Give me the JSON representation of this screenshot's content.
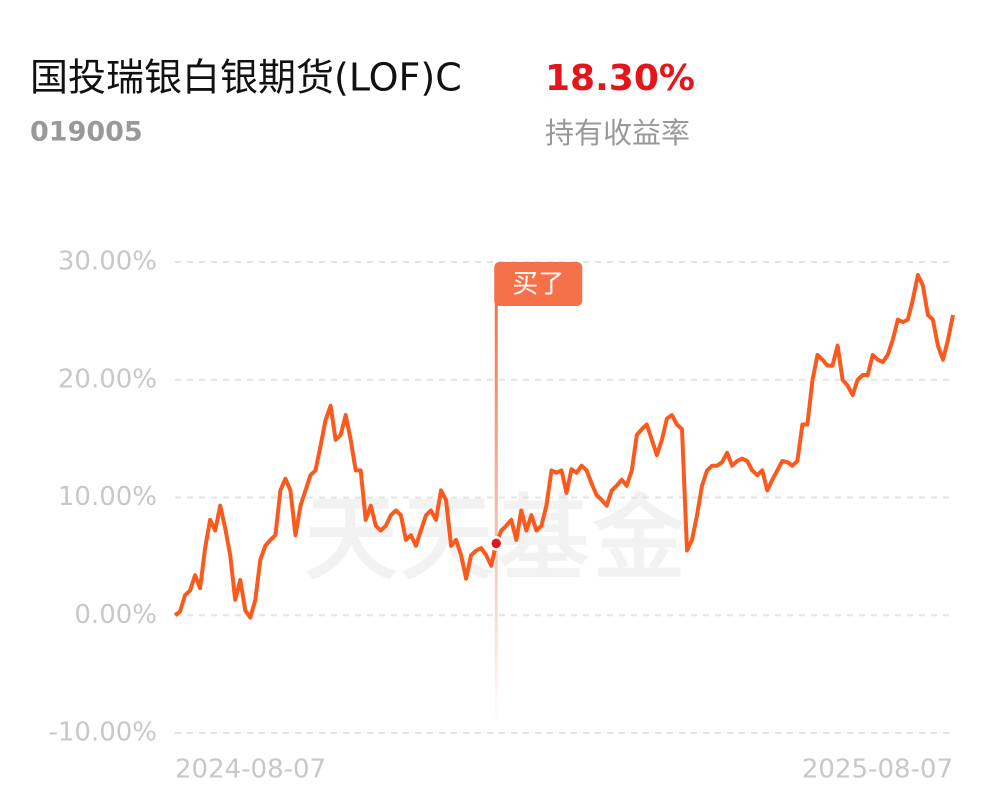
{
  "header": {
    "title": "国投瑞银白银期货(LOF)C",
    "code": "019005",
    "return_value": "18.30%",
    "return_label": "持有收益率"
  },
  "chart_data": {
    "type": "line",
    "watermark": "天天基金",
    "annotation": {
      "text": "买了",
      "index": 64
    },
    "categories": [
      "2024-08-07",
      null,
      null,
      null,
      null,
      null,
      null,
      null,
      null,
      null,
      null,
      null,
      null,
      null,
      null,
      null,
      null,
      null,
      null,
      null,
      null,
      null,
      null,
      null,
      null,
      null,
      null,
      null,
      null,
      null,
      null,
      null,
      null,
      null,
      null,
      null,
      null,
      null,
      null,
      null,
      null,
      null,
      null,
      null,
      null,
      null,
      null,
      null,
      null,
      null,
      null,
      null,
      null,
      null,
      null,
      null,
      null,
      null,
      null,
      null,
      null,
      null,
      null,
      null,
      null,
      null,
      null,
      null,
      null,
      null,
      null,
      null,
      null,
      null,
      null,
      null,
      null,
      null,
      null,
      null,
      null,
      null,
      null,
      null,
      null,
      null,
      null,
      null,
      null,
      null,
      null,
      null,
      null,
      null,
      null,
      null,
      null,
      null,
      null,
      null,
      null,
      null,
      null,
      null,
      null,
      null,
      null,
      null,
      null,
      null,
      null,
      null,
      null,
      null,
      null,
      null,
      null,
      null,
      null,
      null,
      null,
      null,
      null,
      null,
      null,
      null,
      null,
      null,
      null,
      null,
      null,
      null,
      null,
      null,
      null,
      null,
      null,
      null,
      null,
      null,
      null,
      null,
      null,
      null,
      null,
      null,
      null,
      null,
      null,
      null,
      null,
      null,
      null,
      null,
      null,
      "2025-08-07"
    ],
    "series": [
      {
        "color": "#fa5a1e",
        "values": [
          0,
          0.3,
          1.7,
          2.1,
          3.4,
          2.3,
          5.7,
          8.1,
          7.2,
          9.3,
          7.4,
          5.1,
          1.3,
          3.0,
          0.4,
          -0.2,
          1.3,
          4.7,
          5.9,
          6.4,
          6.8,
          10.6,
          11.6,
          10.6,
          6.8,
          9.3,
          10.6,
          11.9,
          12.3,
          14.4,
          16.6,
          17.8,
          14.9,
          15.3,
          17.0,
          14.9,
          12.3,
          12.3,
          8.1,
          9.3,
          7.6,
          7.2,
          7.6,
          8.5,
          8.9,
          8.5,
          6.4,
          6.8,
          5.9,
          7.2,
          8.5,
          8.9,
          8.1,
          10.6,
          9.8,
          5.9,
          6.4,
          5.1,
          3.1,
          5.1,
          5.5,
          5.7,
          5.1,
          4.2,
          6.1,
          7.2,
          7.6,
          8.1,
          6.4,
          8.9,
          7.2,
          8.5,
          7.2,
          7.6,
          9.3,
          12.3,
          12.1,
          12.3,
          10.4,
          12.4,
          12.1,
          12.7,
          12.3,
          11.2,
          10.2,
          9.8,
          9.3,
          10.6,
          11.0,
          11.5,
          11.0,
          12.3,
          15.3,
          15.8,
          16.2,
          14.9,
          13.6,
          14.9,
          16.7,
          17.0,
          16.2,
          15.8,
          5.5,
          6.4,
          8.5,
          11.0,
          12.3,
          12.7,
          12.7,
          13.0,
          13.8,
          12.7,
          13.1,
          13.3,
          13.1,
          12.3,
          11.9,
          12.3,
          10.6,
          11.5,
          12.3,
          13.1,
          13.0,
          12.7,
          13.1,
          16.2,
          16.2,
          20.0,
          22.1,
          21.7,
          21.2,
          21.2,
          22.9,
          20.0,
          19.5,
          18.7,
          20.0,
          20.4,
          20.4,
          22.1,
          21.7,
          21.5,
          22.1,
          23.4,
          25.1,
          24.9,
          25.1,
          26.8,
          28.9,
          28.0,
          25.5,
          25.1,
          22.9,
          21.7,
          23.4,
          25.5
        ]
      }
    ],
    "ylim": [
      -10,
      30
    ],
    "yticks": [
      {
        "value": -10,
        "label": "-10.00%"
      },
      {
        "value": 0,
        "label": "0.00%"
      },
      {
        "value": 10,
        "label": "10.00%"
      },
      {
        "value": 20,
        "label": "20.00%"
      },
      {
        "value": 30,
        "label": "30.00%"
      }
    ],
    "grid": true
  }
}
